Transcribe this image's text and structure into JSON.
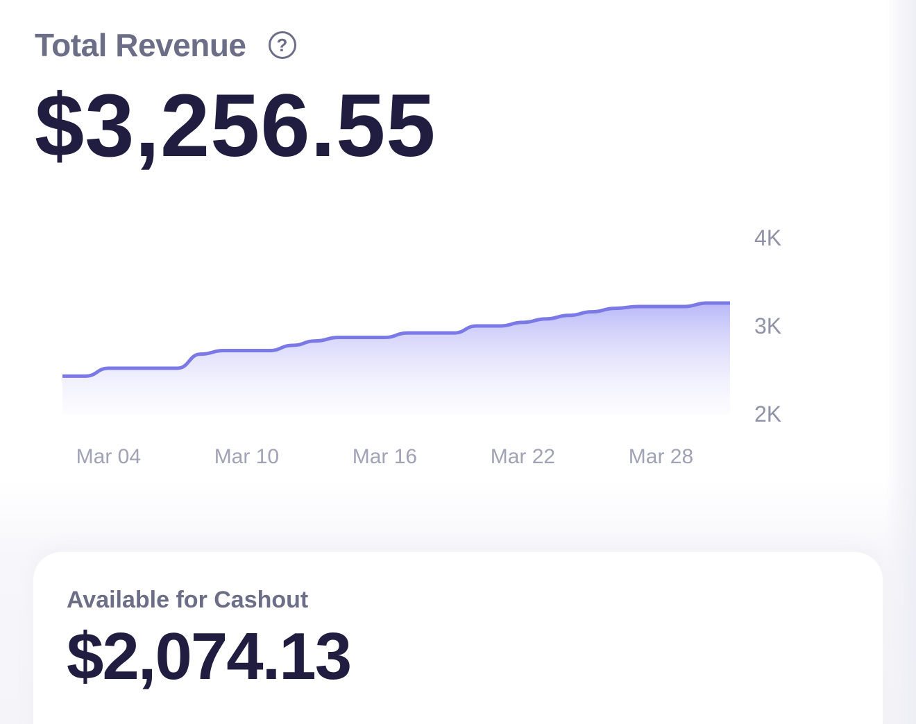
{
  "revenue": {
    "title": "Total Revenue",
    "help_icon": "question-circle-icon",
    "amount": "$3,256.55"
  },
  "cashout": {
    "label": "Available for Cashout",
    "amount": "$2,074.13"
  },
  "colors": {
    "line": "#7b79e6",
    "fill_top": "#b6b5f7",
    "text_dark": "#211d40",
    "text_muted": "#6b6e86"
  },
  "chart_data": {
    "type": "area",
    "x": [
      "Mar 02",
      "Mar 03",
      "Mar 04",
      "Mar 05",
      "Mar 06",
      "Mar 07",
      "Mar 08",
      "Mar 09",
      "Mar 10",
      "Mar 11",
      "Mar 12",
      "Mar 13",
      "Mar 14",
      "Mar 15",
      "Mar 16",
      "Mar 17",
      "Mar 18",
      "Mar 19",
      "Mar 20",
      "Mar 21",
      "Mar 22",
      "Mar 23",
      "Mar 24",
      "Mar 25",
      "Mar 26",
      "Mar 27",
      "Mar 28",
      "Mar 29",
      "Mar 30",
      "Mar 31"
    ],
    "values": [
      2430,
      2430,
      2520,
      2520,
      2520,
      2520,
      2680,
      2720,
      2720,
      2720,
      2780,
      2830,
      2870,
      2870,
      2870,
      2920,
      2920,
      2920,
      3000,
      3000,
      3040,
      3080,
      3120,
      3160,
      3200,
      3220,
      3220,
      3220,
      3260,
      3260
    ],
    "x_ticks": [
      "Mar 04",
      "Mar 10",
      "Mar 16",
      "Mar 22",
      "Mar 28"
    ],
    "y_ticks": [
      "4K",
      "3K",
      "2K"
    ],
    "ylim": [
      2000,
      4000
    ],
    "y_axis_position": "right",
    "grid": false
  }
}
